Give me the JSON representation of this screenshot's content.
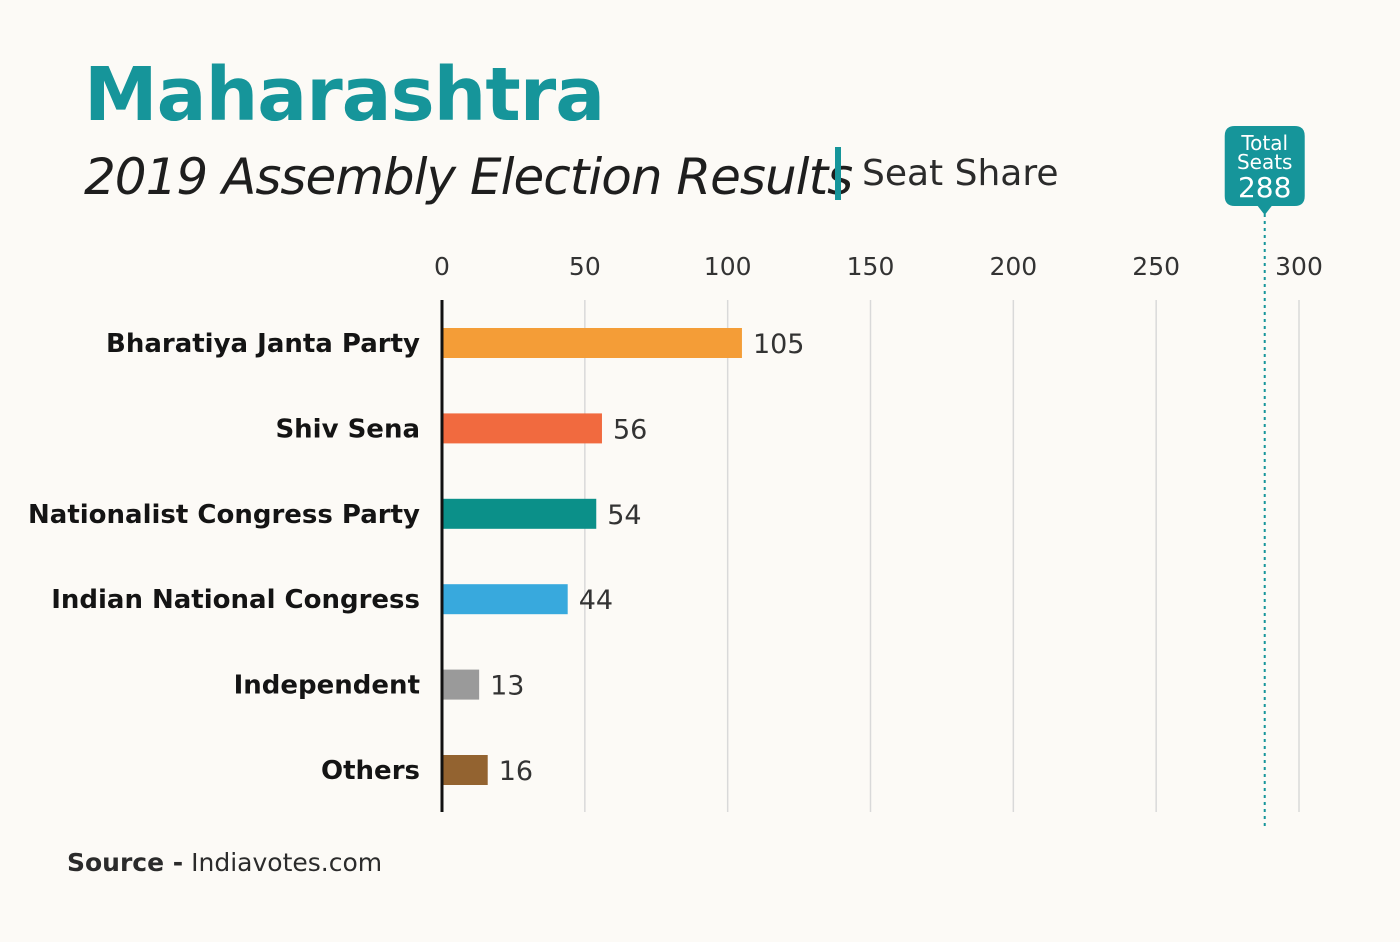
{
  "header": {
    "title": "Maharashtra",
    "subtitle": "2019 Assembly Election Results",
    "subtitle_right": "Seat Share"
  },
  "source": {
    "label": "Source -",
    "value": "Indiavotes.com"
  },
  "total_marker": {
    "line1": "Total",
    "line2": "Seats",
    "value": 288,
    "color": "#16959a"
  },
  "chart_data": {
    "type": "bar",
    "orientation": "horizontal",
    "categories": [
      "Bharatiya Janta Party",
      "Shiv Sena",
      "Nationalist Congress Party",
      "Indian National Congress",
      "Independent",
      "Others"
    ],
    "values": [
      105,
      56,
      54,
      44,
      13,
      16
    ],
    "colors": [
      "#f49d37",
      "#f16a3f",
      "#0b9089",
      "#38a9dd",
      "#9a9a9a",
      "#936330"
    ],
    "xlim": [
      0,
      300
    ],
    "xticks": [
      0,
      50,
      100,
      150,
      200,
      250,
      300
    ],
    "grid": true,
    "xaxis_position": "top",
    "reference_line": {
      "value": 288
    }
  }
}
